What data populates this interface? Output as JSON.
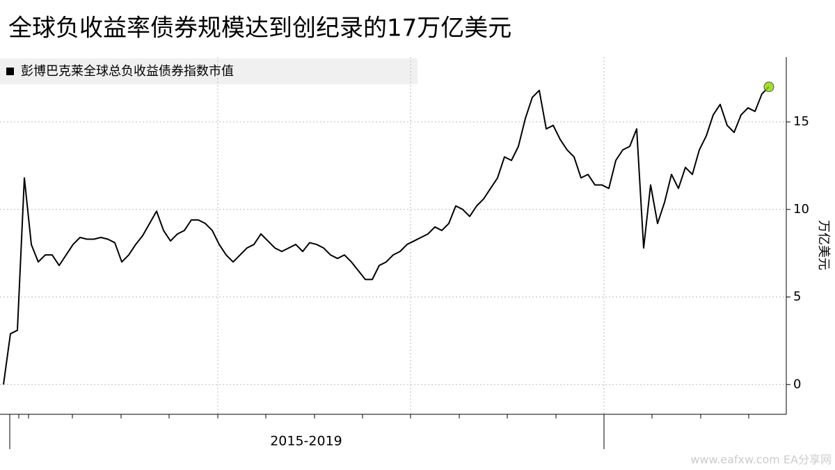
{
  "chart_data": {
    "type": "line",
    "title": "全球负收益率债券规模达到创纪录的17万亿美元",
    "x_label": "2015-2019",
    "y_label": "万亿美元",
    "watermark": "www.eafxw.com  EA分享网",
    "series": [
      {
        "name": "彭博巴克莱全球总负收益债券指数市值",
        "color": "#000000",
        "values": [
          0,
          2.9,
          3.1,
          11.8,
          8.0,
          7.0,
          7.4,
          7.4,
          6.8,
          7.4,
          8.0,
          8.4,
          8.3,
          8.3,
          8.4,
          8.3,
          8.1,
          7.0,
          7.4,
          8.0,
          8.5,
          9.2,
          9.9,
          8.8,
          8.2,
          8.6,
          8.8,
          9.4,
          9.4,
          9.2,
          8.8,
          8.0,
          7.4,
          7.0,
          7.4,
          7.8,
          8.0,
          8.6,
          8.2,
          7.8,
          7.6,
          7.8,
          8.0,
          7.6,
          8.1,
          8.0,
          7.8,
          7.4,
          7.2,
          7.4,
          7.0,
          6.5,
          6.0,
          6.0,
          6.8,
          7.0,
          7.4,
          7.6,
          8.0,
          8.2,
          8.4,
          8.6,
          9.0,
          8.8,
          9.2,
          10.2,
          10.0,
          9.6,
          10.2,
          10.6,
          11.2,
          11.8,
          13.0,
          12.8,
          13.6,
          15.2,
          16.4,
          16.8,
          14.6,
          14.8,
          14.0,
          13.4,
          13.0,
          11.8,
          12.0,
          11.4,
          11.4,
          11.2,
          12.8,
          13.4,
          13.6,
          14.6,
          7.8,
          11.4,
          9.2,
          10.4,
          12.0,
          11.2,
          12.4,
          12.0,
          13.4,
          14.2,
          15.4,
          16.0,
          14.8,
          14.4,
          15.4,
          15.8,
          15.6,
          16.6,
          17.0
        ]
      }
    ],
    "end_marker_color": "#8fd400",
    "ylim": [
      -1.7,
      18.7
    ],
    "yticks": [
      0,
      5,
      10,
      15
    ],
    "grid": true
  }
}
